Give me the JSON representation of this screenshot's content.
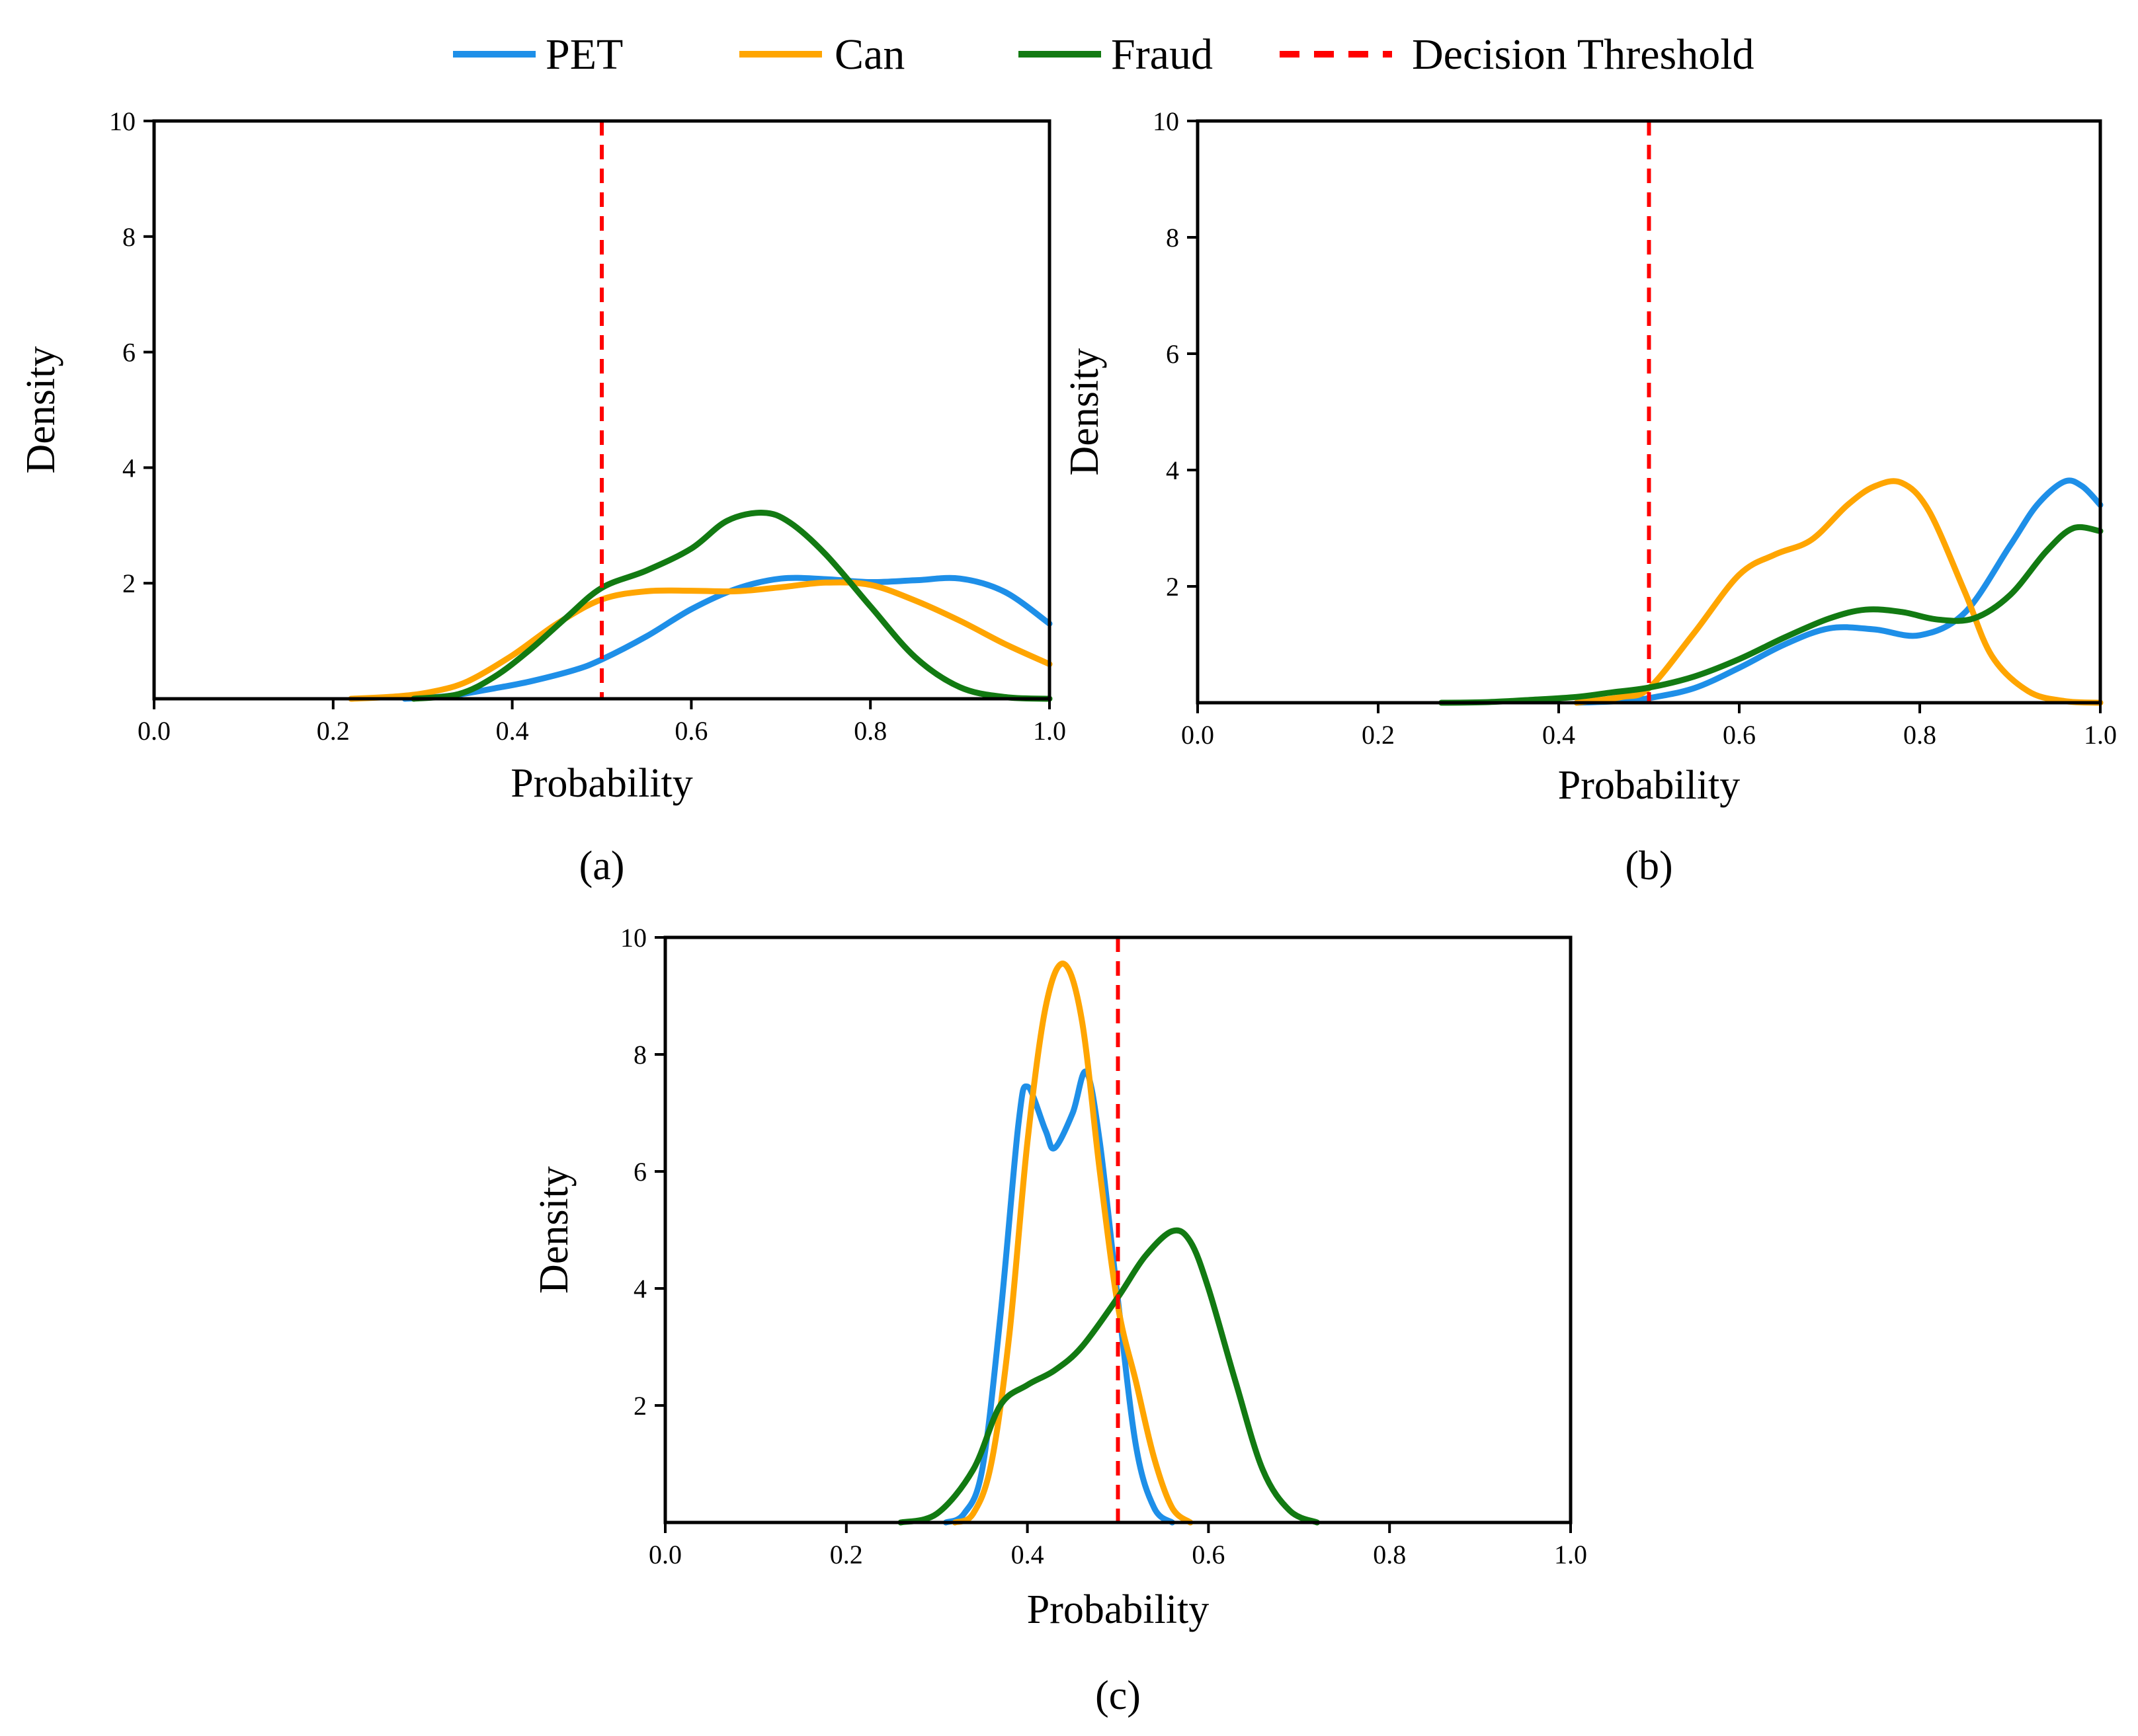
{
  "legend": {
    "position": "top-center",
    "entries": [
      {
        "label": "PET",
        "color": "#1E8FE8",
        "style": "solid"
      },
      {
        "label": "Can",
        "color": "#FFA500",
        "style": "solid"
      },
      {
        "label": "Fraud",
        "color": "#127A12",
        "style": "solid"
      },
      {
        "label": "Decision Threshold",
        "color": "#FF0000",
        "style": "dashed"
      }
    ]
  },
  "chart_data": [
    {
      "type": "line",
      "caption": "(a)",
      "xlabel": "Probability",
      "ylabel": "Density",
      "xlim": [
        0.0,
        1.0
      ],
      "ylim": [
        0,
        10
      ],
      "xticks": [
        "0.0",
        "0.2",
        "0.4",
        "0.6",
        "0.8",
        "1.0"
      ],
      "yticks": [
        "2",
        "4",
        "6",
        "8",
        "10"
      ],
      "threshold": 0.5,
      "series": [
        {
          "name": "PET",
          "x": [
            0.28,
            0.33,
            0.38,
            0.42,
            0.47,
            0.5,
            0.55,
            0.6,
            0.65,
            0.7,
            0.75,
            0.8,
            0.85,
            0.9,
            0.95,
            1.0
          ],
          "y": [
            0.0,
            0.05,
            0.18,
            0.3,
            0.5,
            0.68,
            1.08,
            1.55,
            1.9,
            2.08,
            2.07,
            2.02,
            2.05,
            2.08,
            1.85,
            1.3
          ]
        },
        {
          "name": "Can",
          "x": [
            0.22,
            0.27,
            0.31,
            0.35,
            0.4,
            0.45,
            0.5,
            0.55,
            0.6,
            0.65,
            0.7,
            0.75,
            0.8,
            0.85,
            0.9,
            0.95,
            1.0
          ],
          "y": [
            0.0,
            0.04,
            0.12,
            0.3,
            0.75,
            1.3,
            1.72,
            1.86,
            1.87,
            1.86,
            1.93,
            2.01,
            1.97,
            1.7,
            1.35,
            0.95,
            0.6
          ]
        },
        {
          "name": "Fraud",
          "x": [
            0.29,
            0.34,
            0.38,
            0.42,
            0.46,
            0.5,
            0.55,
            0.6,
            0.64,
            0.68,
            0.71,
            0.75,
            0.8,
            0.85,
            0.9,
            0.95,
            1.0
          ],
          "y": [
            0.0,
            0.08,
            0.38,
            0.85,
            1.4,
            1.92,
            2.22,
            2.6,
            3.08,
            3.22,
            3.05,
            2.5,
            1.6,
            0.72,
            0.2,
            0.03,
            0.0
          ]
        }
      ]
    },
    {
      "type": "line",
      "caption": "(b)",
      "xlabel": "Probability",
      "ylabel": "Density",
      "xlim": [
        0.0,
        1.0
      ],
      "ylim": [
        0,
        10
      ],
      "xticks": [
        "0.0",
        "0.2",
        "0.4",
        "0.6",
        "0.8",
        "1.0"
      ],
      "yticks": [
        "2",
        "4",
        "6",
        "8",
        "10"
      ],
      "threshold": 0.5,
      "series": [
        {
          "name": "PET",
          "x": [
            0.42,
            0.47,
            0.5,
            0.55,
            0.6,
            0.65,
            0.7,
            0.75,
            0.8,
            0.85,
            0.9,
            0.93,
            0.96,
            0.98,
            1.0
          ],
          "y": [
            0.0,
            0.03,
            0.08,
            0.25,
            0.6,
            1.0,
            1.28,
            1.26,
            1.16,
            1.55,
            2.7,
            3.4,
            3.8,
            3.72,
            3.4
          ]
        },
        {
          "name": "Can",
          "x": [
            0.42,
            0.47,
            0.5,
            0.55,
            0.6,
            0.64,
            0.68,
            0.72,
            0.75,
            0.78,
            0.81,
            0.85,
            0.88,
            0.92,
            0.96,
            1.0
          ],
          "y": [
            0.0,
            0.1,
            0.25,
            1.2,
            2.2,
            2.55,
            2.8,
            3.4,
            3.72,
            3.78,
            3.3,
            1.9,
            0.8,
            0.2,
            0.03,
            0.0
          ]
        },
        {
          "name": "Fraud",
          "x": [
            0.27,
            0.32,
            0.37,
            0.42,
            0.46,
            0.5,
            0.55,
            0.6,
            0.65,
            0.7,
            0.74,
            0.78,
            0.82,
            0.86,
            0.9,
            0.94,
            0.97,
            1.0
          ],
          "y": [
            0.0,
            0.01,
            0.05,
            0.1,
            0.18,
            0.26,
            0.45,
            0.75,
            1.12,
            1.45,
            1.6,
            1.56,
            1.43,
            1.45,
            1.85,
            2.6,
            3.0,
            2.95
          ]
        }
      ]
    },
    {
      "type": "line",
      "caption": "(c)",
      "xlabel": "Probability",
      "ylabel": "Density",
      "xlim": [
        0.0,
        1.0
      ],
      "ylim": [
        0,
        10
      ],
      "xticks": [
        "0.0",
        "0.2",
        "0.4",
        "0.6",
        "0.8",
        "1.0"
      ],
      "yticks": [
        "2",
        "4",
        "6",
        "8",
        "10"
      ],
      "threshold": 0.5,
      "series": [
        {
          "name": "PET",
          "x": [
            0.31,
            0.33,
            0.35,
            0.37,
            0.39,
            0.4,
            0.42,
            0.43,
            0.45,
            0.465,
            0.48,
            0.5,
            0.52,
            0.54,
            0.56
          ],
          "y": [
            0.0,
            0.15,
            0.9,
            3.5,
            6.8,
            7.45,
            6.7,
            6.4,
            7.0,
            7.7,
            6.5,
            3.8,
            1.3,
            0.25,
            0.0
          ]
        },
        {
          "name": "Can",
          "x": [
            0.32,
            0.34,
            0.36,
            0.38,
            0.4,
            0.42,
            0.44,
            0.46,
            0.48,
            0.5,
            0.52,
            0.54,
            0.56,
            0.58
          ],
          "y": [
            0.0,
            0.15,
            1.0,
            3.2,
            6.5,
            8.8,
            9.55,
            8.6,
            6.0,
            3.7,
            2.4,
            1.1,
            0.25,
            0.0
          ]
        },
        {
          "name": "Fraud",
          "x": [
            0.26,
            0.3,
            0.34,
            0.37,
            0.4,
            0.43,
            0.46,
            0.5,
            0.53,
            0.56,
            0.58,
            0.6,
            0.63,
            0.66,
            0.69,
            0.72
          ],
          "y": [
            0.0,
            0.15,
            0.9,
            2.0,
            2.35,
            2.6,
            3.0,
            3.85,
            4.55,
            4.98,
            4.8,
            4.0,
            2.4,
            0.9,
            0.2,
            0.0
          ]
        }
      ]
    }
  ]
}
